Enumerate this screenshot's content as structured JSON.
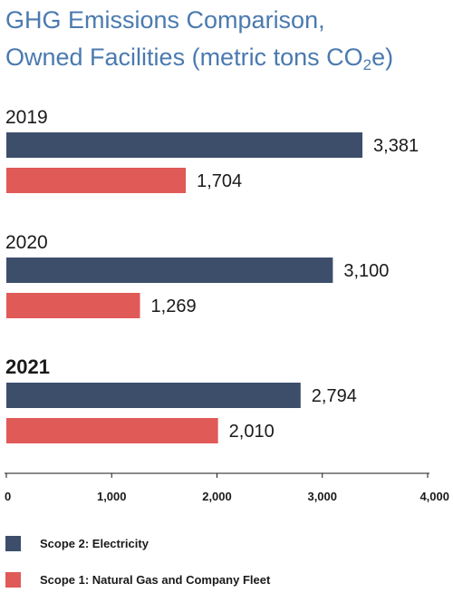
{
  "title_line1": "GHG Emissions Comparison,",
  "title_line2_pre": "Owned Facilities (metric tons CO",
  "title_sub": "2",
  "title_line2_post": "e)",
  "colors": {
    "scope2": "#3d4e6b",
    "scope1": "#e05a58",
    "title": "#4a7aaf"
  },
  "chart_data": {
    "type": "bar",
    "orientation": "horizontal",
    "categories": [
      "2019",
      "2020",
      "2021"
    ],
    "highlight_category": "2021",
    "series": [
      {
        "name": "Scope 2: Electricity",
        "values": [
          3381,
          3100,
          2794
        ],
        "labels": [
          "3,381",
          "3,100",
          "2,794"
        ]
      },
      {
        "name": "Scope 1: Natural Gas and Company Fleet",
        "values": [
          1704,
          1269,
          2010
        ],
        "labels": [
          "1,704",
          "1,269",
          "2,010"
        ]
      }
    ],
    "xlim": [
      0,
      4000
    ],
    "xticks": [
      0,
      1000,
      2000,
      3000,
      4000
    ],
    "xtick_labels": [
      "0",
      "1,000",
      "2,000",
      "3,000",
      "4,000"
    ],
    "legend_position": "bottom",
    "grid": false
  }
}
